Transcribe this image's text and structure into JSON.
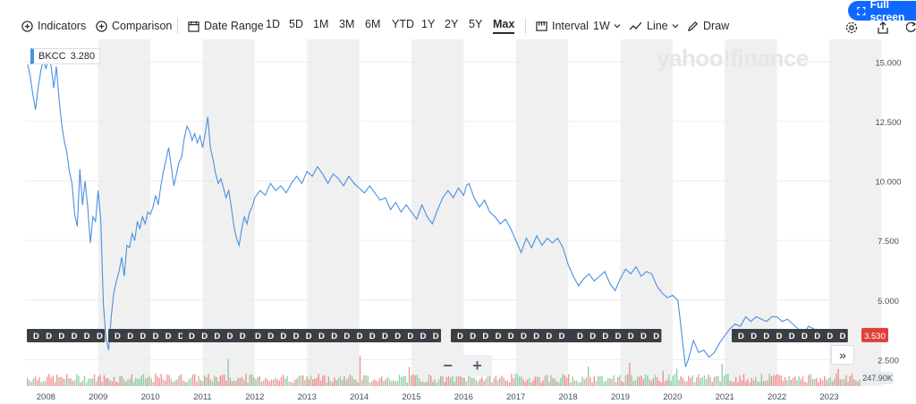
{
  "toolbar": {
    "indicators_label": "Indicators",
    "comparison_label": "Comparison",
    "date_range_label": "Date Range",
    "ranges": [
      "1D",
      "5D",
      "1M",
      "3M",
      "6M",
      "YTD",
      "1Y",
      "2Y",
      "5Y",
      "Max"
    ],
    "active_range": "Max",
    "interval_label": "Interval",
    "interval_value": "1W",
    "chart_type_label": "Line",
    "draw_label": "Draw",
    "fullscreen_label": "Full screen"
  },
  "badge": {
    "symbol": "BKCC",
    "value": "3.280"
  },
  "watermark": "yahoo!finance",
  "zoom": {
    "minus": "−",
    "plus": "+"
  },
  "forward_label": "»",
  "dividend_marker_label": "D",
  "colors": {
    "line": "#4a90e2",
    "up_volume": "#6cc28a",
    "down_volume": "#ef6e6e",
    "price_tag": "#e0403a",
    "band": "#f0f0f0",
    "accent": "#0f69ff"
  },
  "chart_data": {
    "type": "line",
    "series": [
      {
        "name": "BKCC",
        "points": [
          [
            2007.65,
            14.9
          ],
          [
            2007.7,
            14.4
          ],
          [
            2007.75,
            13.6
          ],
          [
            2007.8,
            13.0
          ],
          [
            2007.85,
            13.9
          ],
          [
            2007.9,
            14.6
          ],
          [
            2007.95,
            15.1
          ],
          [
            2008.0,
            14.7
          ],
          [
            2008.05,
            15.2
          ],
          [
            2008.1,
            14.8
          ],
          [
            2008.15,
            13.9
          ],
          [
            2008.2,
            14.8
          ],
          [
            2008.25,
            13.5
          ],
          [
            2008.3,
            12.4
          ],
          [
            2008.35,
            11.7
          ],
          [
            2008.4,
            11.2
          ],
          [
            2008.45,
            10.4
          ],
          [
            2008.5,
            9.9
          ],
          [
            2008.55,
            8.6
          ],
          [
            2008.6,
            8.1
          ],
          [
            2008.65,
            10.5
          ],
          [
            2008.7,
            9.0
          ],
          [
            2008.75,
            10.0
          ],
          [
            2008.8,
            8.9
          ],
          [
            2008.85,
            7.4
          ],
          [
            2008.9,
            8.5
          ],
          [
            2008.95,
            8.3
          ],
          [
            2009.0,
            9.6
          ],
          [
            2009.05,
            8.4
          ],
          [
            2009.1,
            4.8
          ],
          [
            2009.15,
            3.4
          ],
          [
            2009.2,
            2.9
          ],
          [
            2009.25,
            4.3
          ],
          [
            2009.3,
            5.3
          ],
          [
            2009.35,
            5.8
          ],
          [
            2009.4,
            6.2
          ],
          [
            2009.45,
            6.8
          ],
          [
            2009.5,
            6.0
          ],
          [
            2009.55,
            7.3
          ],
          [
            2009.6,
            7.2
          ],
          [
            2009.65,
            7.8
          ],
          [
            2009.7,
            7.5
          ],
          [
            2009.75,
            8.3
          ],
          [
            2009.8,
            8.0
          ],
          [
            2009.85,
            8.5
          ],
          [
            2009.9,
            8.2
          ],
          [
            2009.95,
            8.7
          ],
          [
            2010.0,
            8.6
          ],
          [
            2010.05,
            8.9
          ],
          [
            2010.1,
            9.4
          ],
          [
            2010.15,
            9.0
          ],
          [
            2010.2,
            9.8
          ],
          [
            2010.25,
            10.4
          ],
          [
            2010.3,
            10.9
          ],
          [
            2010.35,
            11.4
          ],
          [
            2010.4,
            10.6
          ],
          [
            2010.45,
            9.8
          ],
          [
            2010.5,
            10.3
          ],
          [
            2010.55,
            10.8
          ],
          [
            2010.6,
            11.0
          ],
          [
            2010.65,
            11.8
          ],
          [
            2010.7,
            12.3
          ],
          [
            2010.75,
            12.1
          ],
          [
            2010.8,
            11.7
          ],
          [
            2010.85,
            12.0
          ],
          [
            2010.9,
            11.6
          ],
          [
            2010.95,
            11.9
          ],
          [
            2011.0,
            11.4
          ],
          [
            2011.05,
            12.0
          ],
          [
            2011.1,
            12.7
          ],
          [
            2011.15,
            11.4
          ],
          [
            2011.2,
            10.9
          ],
          [
            2011.25,
            10.3
          ],
          [
            2011.3,
            9.9
          ],
          [
            2011.35,
            10.1
          ],
          [
            2011.4,
            9.7
          ],
          [
            2011.45,
            9.3
          ],
          [
            2011.5,
            9.6
          ],
          [
            2011.55,
            8.9
          ],
          [
            2011.6,
            8.1
          ],
          [
            2011.65,
            7.6
          ],
          [
            2011.7,
            7.3
          ],
          [
            2011.75,
            8.0
          ],
          [
            2011.8,
            8.5
          ],
          [
            2011.85,
            8.2
          ],
          [
            2011.9,
            8.7
          ],
          [
            2011.95,
            8.9
          ],
          [
            2012.0,
            9.3
          ],
          [
            2012.1,
            9.6
          ],
          [
            2012.2,
            9.4
          ],
          [
            2012.3,
            9.9
          ],
          [
            2012.4,
            9.6
          ],
          [
            2012.5,
            9.8
          ],
          [
            2012.6,
            9.5
          ],
          [
            2012.7,
            9.9
          ],
          [
            2012.8,
            10.2
          ],
          [
            2012.9,
            9.9
          ],
          [
            2013.0,
            10.4
          ],
          [
            2013.1,
            10.2
          ],
          [
            2013.2,
            10.6
          ],
          [
            2013.3,
            10.3
          ],
          [
            2013.4,
            9.9
          ],
          [
            2013.5,
            10.3
          ],
          [
            2013.6,
            10.1
          ],
          [
            2013.7,
            9.8
          ],
          [
            2013.8,
            10.2
          ],
          [
            2013.9,
            9.9
          ],
          [
            2014.0,
            9.7
          ],
          [
            2014.1,
            9.5
          ],
          [
            2014.2,
            9.8
          ],
          [
            2014.3,
            9.5
          ],
          [
            2014.4,
            9.2
          ],
          [
            2014.5,
            9.3
          ],
          [
            2014.6,
            8.8
          ],
          [
            2014.7,
            9.1
          ],
          [
            2014.8,
            8.7
          ],
          [
            2014.9,
            9.0
          ],
          [
            2015.0,
            8.7
          ],
          [
            2015.1,
            8.4
          ],
          [
            2015.2,
            9.0
          ],
          [
            2015.3,
            8.5
          ],
          [
            2015.4,
            8.2
          ],
          [
            2015.5,
            8.8
          ],
          [
            2015.6,
            9.3
          ],
          [
            2015.7,
            9.6
          ],
          [
            2015.8,
            9.3
          ],
          [
            2015.9,
            9.7
          ],
          [
            2016.0,
            9.4
          ],
          [
            2016.05,
            9.8
          ],
          [
            2016.1,
            9.9
          ],
          [
            2016.2,
            9.3
          ],
          [
            2016.3,
            8.9
          ],
          [
            2016.4,
            9.2
          ],
          [
            2016.5,
            8.7
          ],
          [
            2016.6,
            8.5
          ],
          [
            2016.7,
            8.2
          ],
          [
            2016.8,
            8.4
          ],
          [
            2016.9,
            8.0
          ],
          [
            2017.0,
            7.5
          ],
          [
            2017.1,
            7.0
          ],
          [
            2017.2,
            7.6
          ],
          [
            2017.3,
            7.2
          ],
          [
            2017.4,
            7.7
          ],
          [
            2017.5,
            7.3
          ],
          [
            2017.6,
            7.6
          ],
          [
            2017.7,
            7.4
          ],
          [
            2017.8,
            7.6
          ],
          [
            2017.9,
            7.2
          ],
          [
            2018.0,
            6.5
          ],
          [
            2018.1,
            6.0
          ],
          [
            2018.2,
            5.6
          ],
          [
            2018.3,
            5.9
          ],
          [
            2018.4,
            6.1
          ],
          [
            2018.5,
            5.8
          ],
          [
            2018.6,
            6.0
          ],
          [
            2018.7,
            6.2
          ],
          [
            2018.8,
            5.7
          ],
          [
            2018.9,
            5.4
          ],
          [
            2019.0,
            5.9
          ],
          [
            2019.1,
            6.3
          ],
          [
            2019.2,
            6.1
          ],
          [
            2019.3,
            6.4
          ],
          [
            2019.4,
            6.0
          ],
          [
            2019.5,
            6.2
          ],
          [
            2019.6,
            6.1
          ],
          [
            2019.7,
            5.6
          ],
          [
            2019.8,
            5.3
          ],
          [
            2019.9,
            5.1
          ],
          [
            2020.0,
            5.2
          ],
          [
            2020.1,
            5.0
          ],
          [
            2020.15,
            4.1
          ],
          [
            2020.2,
            3.1
          ],
          [
            2020.25,
            2.2
          ],
          [
            2020.3,
            2.5
          ],
          [
            2020.35,
            2.9
          ],
          [
            2020.4,
            3.3
          ],
          [
            2020.5,
            2.8
          ],
          [
            2020.6,
            2.9
          ],
          [
            2020.7,
            2.6
          ],
          [
            2020.8,
            2.8
          ],
          [
            2020.9,
            3.2
          ],
          [
            2021.0,
            3.5
          ],
          [
            2021.1,
            3.8
          ],
          [
            2021.2,
            4.0
          ],
          [
            2021.3,
            3.9
          ],
          [
            2021.4,
            4.3
          ],
          [
            2021.5,
            4.1
          ],
          [
            2021.6,
            4.3
          ],
          [
            2021.7,
            4.2
          ],
          [
            2021.8,
            4.1
          ],
          [
            2021.9,
            4.3
          ],
          [
            2022.0,
            4.3
          ],
          [
            2022.1,
            4.1
          ],
          [
            2022.2,
            4.2
          ],
          [
            2022.3,
            4.0
          ],
          [
            2022.4,
            3.8
          ],
          [
            2022.5,
            3.5
          ],
          [
            2022.6,
            3.9
          ],
          [
            2022.7,
            3.8
          ],
          [
            2022.8,
            3.6
          ],
          [
            2022.9,
            3.7
          ],
          [
            2023.0,
            3.6
          ],
          [
            2023.1,
            3.3
          ],
          [
            2023.2,
            3.3
          ],
          [
            2023.3,
            3.5
          ],
          [
            2023.35,
            3.53
          ]
        ]
      }
    ],
    "x_ticks": [
      "2008",
      "2009",
      "2010",
      "2011",
      "2012",
      "2013",
      "2014",
      "2015",
      "2016",
      "2017",
      "2018",
      "2019",
      "2020",
      "2021",
      "2022",
      "2023"
    ],
    "y_ticks": [
      "15.000",
      "12.500",
      "10.000",
      "7.500",
      "5.000",
      "2.500"
    ],
    "xlim": [
      2007.6,
      2023.6
    ],
    "ylim": [
      1.5,
      15.5
    ],
    "current_price": "3.530",
    "volume_label": "247.90K",
    "grid": "vertical year bands"
  }
}
